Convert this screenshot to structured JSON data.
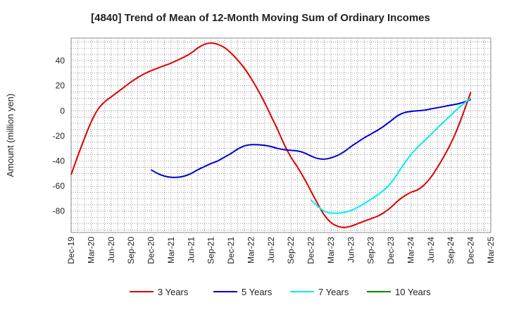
{
  "chart_data": {
    "type": "line",
    "title": "[4840]  Trend of Mean of 12-Month Moving Sum of Ordinary Incomes",
    "xlabel": "",
    "ylabel": "Amount (million yen)",
    "ylim": [
      -97,
      58
    ],
    "yticks": [
      40,
      20,
      0,
      -20,
      -40,
      -60,
      -80
    ],
    "xticks": [
      "Dec-19",
      "Mar-20",
      "Jun-20",
      "Sep-20",
      "Dec-20",
      "Mar-21",
      "Jun-21",
      "Sep-21",
      "Dec-21",
      "Mar-22",
      "Jun-22",
      "Sep-22",
      "Dec-22",
      "Mar-23",
      "Jun-23",
      "Sep-23",
      "Dec-23",
      "Mar-24",
      "Jun-24",
      "Sep-24",
      "Dec-24",
      "Mar-25"
    ],
    "x_unit": "months since Dec-19",
    "grid": true,
    "legend_position": "bottom",
    "series": [
      {
        "name": "3 Years",
        "color": "#dd0000",
        "x": [
          0,
          1,
          2,
          3,
          4,
          5,
          6,
          7,
          8,
          9,
          10,
          11,
          12,
          13,
          14,
          15,
          16,
          17,
          18,
          19,
          20,
          21,
          22,
          23,
          24,
          25,
          26,
          27,
          28,
          29,
          30,
          31,
          32,
          33,
          34,
          35,
          36,
          37,
          38,
          39,
          40,
          41,
          42,
          43,
          44,
          45,
          46,
          47,
          48,
          49,
          50,
          51,
          52,
          53,
          54,
          55,
          56,
          57,
          58,
          59,
          60
        ],
        "values": [
          -51,
          -36,
          -22,
          -9,
          1,
          7,
          11,
          15,
          19,
          23,
          26.5,
          29.5,
          32,
          34,
          36,
          38,
          40.5,
          43,
          46,
          50,
          53,
          54,
          53,
          50.5,
          46,
          40.5,
          34,
          26,
          17,
          7,
          -4,
          -15,
          -27,
          -37,
          -45,
          -54,
          -64,
          -74,
          -83,
          -89,
          -92,
          -93,
          -92,
          -90,
          -88,
          -86,
          -84,
          -81,
          -77,
          -72,
          -68,
          -65,
          -63,
          -59,
          -53,
          -45,
          -36,
          -26,
          -14,
          0,
          15
        ]
      },
      {
        "name": "5 Years",
        "color": "#0000cc",
        "x": [
          12,
          13,
          14,
          15,
          16,
          17,
          18,
          19,
          20,
          21,
          22,
          23,
          24,
          25,
          26,
          27,
          28,
          29,
          30,
          31,
          32,
          33,
          34,
          35,
          36,
          37,
          38,
          39,
          40,
          41,
          42,
          43,
          44,
          45,
          46,
          47,
          48,
          49,
          50,
          51,
          52,
          53,
          54,
          55,
          56,
          57,
          58,
          59,
          60
        ],
        "values": [
          -47,
          -50,
          -52,
          -53,
          -53,
          -52,
          -50,
          -47,
          -44.5,
          -42,
          -40,
          -37,
          -34,
          -30.5,
          -28,
          -27,
          -27,
          -27.5,
          -28.5,
          -30,
          -31,
          -31.5,
          -32,
          -33.5,
          -36,
          -38,
          -38.5,
          -37.5,
          -35.5,
          -32.5,
          -28.5,
          -25,
          -21.5,
          -18.5,
          -15.5,
          -12,
          -8,
          -4,
          -1.5,
          -0.5,
          0,
          0.5,
          1.5,
          2.5,
          3.5,
          4.5,
          5.5,
          7,
          9
        ]
      },
      {
        "name": "7 Years",
        "color": "#00eeee",
        "x": [
          36,
          37,
          38,
          39,
          40,
          41,
          42,
          43,
          44,
          45,
          46,
          47,
          48,
          49,
          50,
          51,
          52,
          53,
          54,
          55,
          56,
          57,
          58,
          59,
          60
        ],
        "values": [
          -71,
          -76,
          -80,
          -81.5,
          -81.5,
          -81,
          -79.5,
          -77,
          -74,
          -70.5,
          -67,
          -63,
          -57.5,
          -50,
          -42,
          -35,
          -29,
          -24,
          -19,
          -13.5,
          -8.5,
          -3.5,
          1.5,
          6,
          10
        ]
      },
      {
        "name": "10 Years",
        "color": "#008800",
        "x": [],
        "values": []
      }
    ]
  }
}
